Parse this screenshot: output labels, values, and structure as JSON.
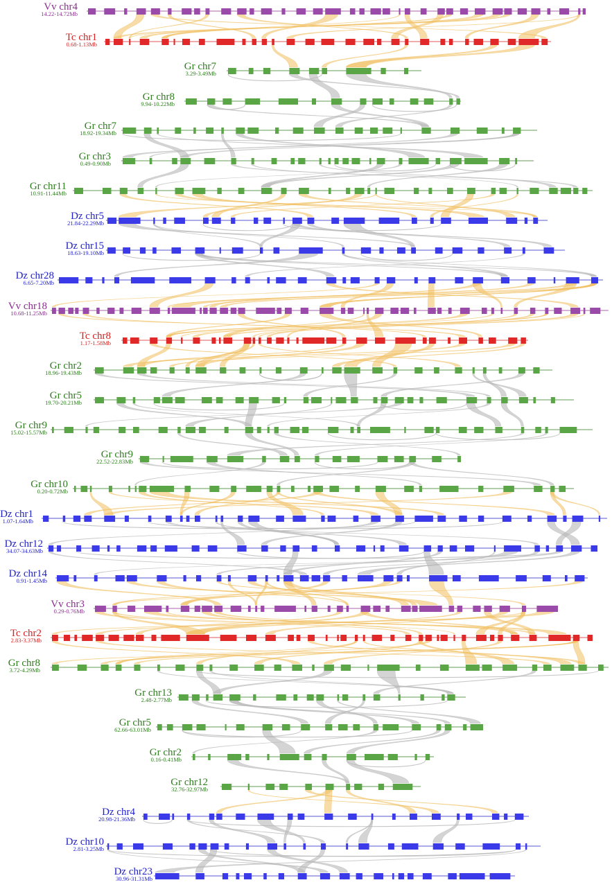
{
  "diagram": {
    "tracks": [
      {
        "species": "Vv",
        "chr": "chr4",
        "name": "Vv chr4",
        "range": "14.22-14.72Mb"
      },
      {
        "species": "Tc",
        "chr": "chr1",
        "name": "Tc chr1",
        "range": "0.68-1.13Mb"
      },
      {
        "species": "Gr",
        "chr": "chr7",
        "name": "Gr chr7",
        "range": "3.29-3.49Mb"
      },
      {
        "species": "Gr",
        "chr": "chr8",
        "name": "Gr chr8",
        "range": "9.94-10.22Mb"
      },
      {
        "species": "Gr",
        "chr": "chr7",
        "name": "Gr chr7",
        "range": "18.92-19.34Mb"
      },
      {
        "species": "Gr",
        "chr": "chr3",
        "name": "Gr chr3",
        "range": "0.49-0.90Mb"
      },
      {
        "species": "Gr",
        "chr": "chr11",
        "name": "Gr chr11",
        "range": "10.91-11.44Mb"
      },
      {
        "species": "Dz",
        "chr": "chr5",
        "name": "Dz chr5",
        "range": "21.84-22.29Mb"
      },
      {
        "species": "Dz",
        "chr": "chr15",
        "name": "Dz chr15",
        "range": "18.63-19.10Mb"
      },
      {
        "species": "Dz",
        "chr": "chr28",
        "name": "Dz chr28",
        "range": "6.65-7.20Mb"
      },
      {
        "species": "Vv",
        "chr": "chr18",
        "name": "Vv chr18",
        "range": "10.68-11.25Mb"
      },
      {
        "species": "Tc",
        "chr": "chr8",
        "name": "Tc chr8",
        "range": "1.17-1.58Mb"
      },
      {
        "species": "Gr",
        "chr": "chr2",
        "name": "Gr chr2",
        "range": "18.96-19.43Mb"
      },
      {
        "species": "Gr",
        "chr": "chr5",
        "name": "Gr chr5",
        "range": "19.70-20.21Mb"
      },
      {
        "species": "Gr",
        "chr": "chr9",
        "name": "Gr chr9",
        "range": "15.02-15.57Mb"
      },
      {
        "species": "Gr",
        "chr": "chr9",
        "name": "Gr chr9",
        "range": "22.52-22.83Mb"
      },
      {
        "species": "Gr",
        "chr": "chr10",
        "name": "Gr chr10",
        "range": "0.20-0.72Mb"
      },
      {
        "species": "Dz",
        "chr": "chr1",
        "name": "Dz chr1",
        "range": "1.07-1.64Mb"
      },
      {
        "species": "Dz",
        "chr": "chr12",
        "name": "Dz chr12",
        "range": "34.07-34.63Mb"
      },
      {
        "species": "Dz",
        "chr": "chr14",
        "name": "Dz chr14",
        "range": "0.91-1.45Mb"
      },
      {
        "species": "Vv",
        "chr": "chr3",
        "name": "Vv chr3",
        "range": "0.29-0.76Mb"
      },
      {
        "species": "Tc",
        "chr": "chr2",
        "name": "Tc chr2",
        "range": "2.83-3.37Mb"
      },
      {
        "species": "Gr",
        "chr": "chr8",
        "name": "Gr chr8",
        "range": "3.72-4.29Mb"
      },
      {
        "species": "Gr",
        "chr": "chr13",
        "name": "Gr chr13",
        "range": "2.48-2.77Mb"
      },
      {
        "species": "Gr",
        "chr": "chr5",
        "name": "Gr chr5",
        "range": "62.66-63.01Mb"
      },
      {
        "species": "Gr",
        "chr": "chr2",
        "name": "Gr chr2",
        "range": "0.16-0.41Mb"
      },
      {
        "species": "Gr",
        "chr": "chr12",
        "name": "Gr chr12",
        "range": "32.76-32.97Mb"
      },
      {
        "species": "Dz",
        "chr": "chr4",
        "name": "Dz chr4",
        "range": "20.98-21.36Mb"
      },
      {
        "species": "Dz",
        "chr": "chr10",
        "name": "Dz chr10",
        "range": "2.81-3.25Mb"
      },
      {
        "species": "Dz",
        "chr": "chr23",
        "name": "Dz chr23",
        "range": "30.96-31.31Mb"
      }
    ],
    "colors": {
      "Vv": "#8b2f8f",
      "Tc": "#d82020",
      "Gr": "#2f7d1f",
      "Dz": "#1f1fc8",
      "Vv_gene": "#9a4aa8",
      "Tc_gene": "#e02828",
      "Gr_gene": "#5aa545",
      "Dz_gene": "#3a3ae8",
      "link_cross_species": "#f0c060",
      "link_within_species": "#b8b8b8"
    }
  }
}
